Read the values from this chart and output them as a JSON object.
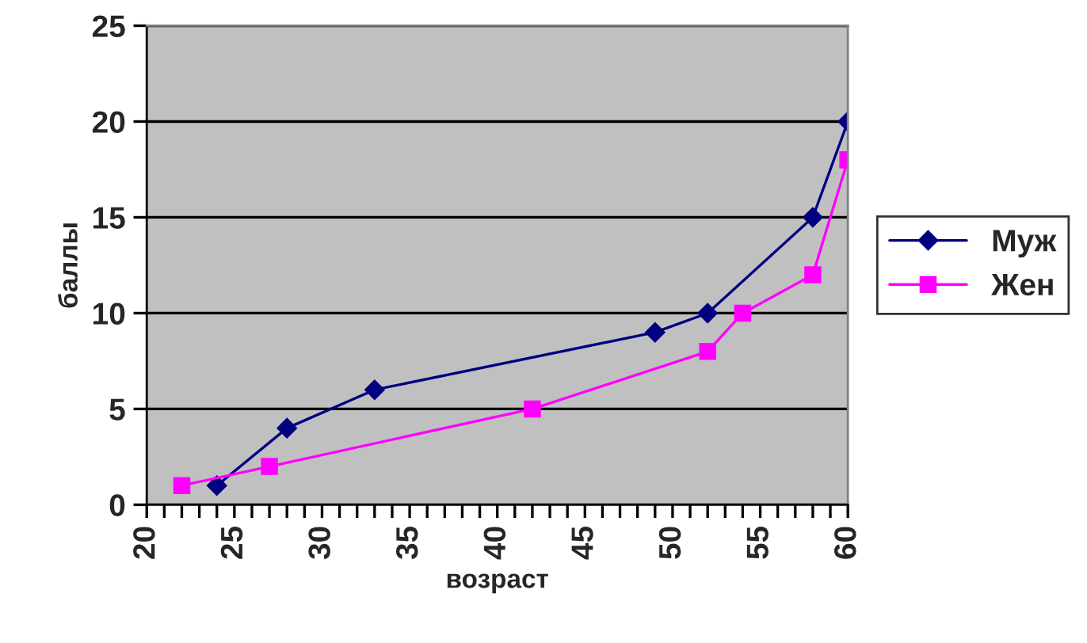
{
  "chart_data": {
    "type": "line",
    "xlabel": "возраст",
    "ylabel": "баллы",
    "series": [
      {
        "name": "Муж",
        "color": "#000080",
        "marker": "diamond",
        "x": [
          24,
          28,
          33,
          49,
          52,
          58,
          60
        ],
        "values": [
          1,
          4,
          6,
          9,
          10,
          15,
          20
        ]
      },
      {
        "name": "Жен",
        "color": "#ff00ff",
        "marker": "square",
        "x": [
          22,
          27,
          42,
          52,
          54,
          58,
          60
        ],
        "values": [
          1,
          2,
          5,
          8,
          10,
          12,
          18
        ]
      }
    ],
    "xlim": [
      20,
      60
    ],
    "ylim": [
      0,
      25
    ],
    "xticks": [
      20,
      {
        "value": 21,
        "label": null
      },
      {
        "value": 22,
        "label": null
      },
      {
        "value": 23,
        "label": null
      },
      {
        "value": 24,
        "label": null
      },
      25,
      {
        "value": 26,
        "label": null
      },
      {
        "value": 27,
        "label": null
      },
      {
        "value": 28,
        "label": null
      },
      {
        "value": 29,
        "label": null
      },
      30,
      {
        "value": 31,
        "label": null
      },
      {
        "value": 32,
        "label": null
      },
      {
        "value": 33,
        "label": null
      },
      {
        "value": 34,
        "label": null
      },
      35,
      {
        "value": 36,
        "label": null
      },
      {
        "value": 37,
        "label": null
      },
      {
        "value": 38,
        "label": null
      },
      {
        "value": 39,
        "label": null
      },
      40,
      {
        "value": 41,
        "label": null
      },
      {
        "value": 42,
        "label": null
      },
      {
        "value": 43,
        "label": null
      },
      {
        "value": 44,
        "label": null
      },
      45,
      {
        "value": 46,
        "label": null
      },
      {
        "value": 47,
        "label": null
      },
      {
        "value": 48,
        "label": null
      },
      {
        "value": 49,
        "label": null
      },
      50,
      {
        "value": 51,
        "label": null
      },
      {
        "value": 52,
        "label": null
      },
      {
        "value": 53,
        "label": null
      },
      {
        "value": 54,
        "label": null
      },
      55,
      {
        "value": 56,
        "label": null
      },
      {
        "value": 57,
        "label": null
      },
      {
        "value": 58,
        "label": null
      },
      {
        "value": 59,
        "label": null
      },
      60
    ],
    "yticks": [
      0,
      5,
      10,
      15,
      20,
      25
    ],
    "grid": "y",
    "legend": "right",
    "line_style": "solid"
  }
}
